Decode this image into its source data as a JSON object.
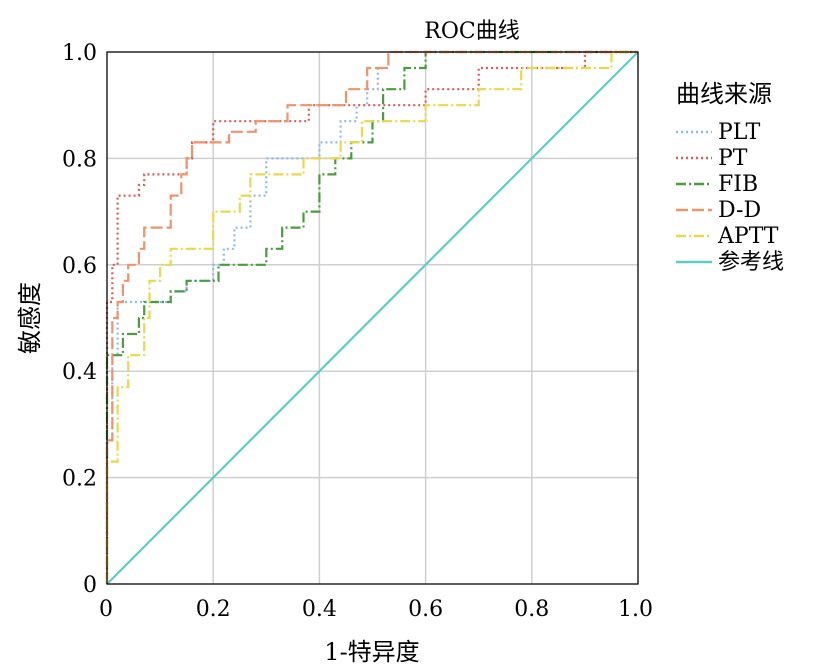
{
  "chart_data": {
    "type": "line",
    "title": "ROC曲线",
    "xlabel": "1-特异度",
    "ylabel": "敏感度",
    "xlim": [
      0,
      1
    ],
    "ylim": [
      0,
      1
    ],
    "x_ticks": [
      "0",
      "0.2",
      "0.4",
      "0.6",
      "0.8",
      "1.0"
    ],
    "y_ticks": [
      "0",
      "0.2",
      "0.4",
      "0.6",
      "0.8",
      "1.0"
    ],
    "grid": true,
    "legend": {
      "title": "曲线来源",
      "position": "right"
    },
    "series": [
      {
        "name": "PLT",
        "color": "#8fb9e8",
        "dash": "dotted",
        "points": [
          [
            0,
            0
          ],
          [
            0,
            0.27
          ],
          [
            0.01,
            0.27
          ],
          [
            0.01,
            0.43
          ],
          [
            0.02,
            0.43
          ],
          [
            0.02,
            0.53
          ],
          [
            0.12,
            0.53
          ],
          [
            0.12,
            0.55
          ],
          [
            0.15,
            0.55
          ],
          [
            0.15,
            0.57
          ],
          [
            0.2,
            0.57
          ],
          [
            0.2,
            0.6
          ],
          [
            0.22,
            0.6
          ],
          [
            0.22,
            0.63
          ],
          [
            0.24,
            0.63
          ],
          [
            0.24,
            0.67
          ],
          [
            0.27,
            0.67
          ],
          [
            0.27,
            0.73
          ],
          [
            0.3,
            0.73
          ],
          [
            0.3,
            0.8
          ],
          [
            0.4,
            0.8
          ],
          [
            0.4,
            0.83
          ],
          [
            0.44,
            0.83
          ],
          [
            0.44,
            0.87
          ],
          [
            0.47,
            0.87
          ],
          [
            0.47,
            0.9
          ],
          [
            0.49,
            0.9
          ],
          [
            0.49,
            0.93
          ],
          [
            0.51,
            0.93
          ],
          [
            0.51,
            0.97
          ],
          [
            0.53,
            0.97
          ],
          [
            0.53,
            1.0
          ],
          [
            1.0,
            1.0
          ]
        ]
      },
      {
        "name": "PT",
        "color": "#e05a5a",
        "dash": "dotted",
        "points": [
          [
            0,
            0
          ],
          [
            0,
            0.53
          ],
          [
            0.01,
            0.53
          ],
          [
            0.01,
            0.6
          ],
          [
            0.02,
            0.6
          ],
          [
            0.02,
            0.73
          ],
          [
            0.06,
            0.73
          ],
          [
            0.06,
            0.75
          ],
          [
            0.07,
            0.75
          ],
          [
            0.07,
            0.77
          ],
          [
            0.15,
            0.77
          ],
          [
            0.15,
            0.8
          ],
          [
            0.16,
            0.8
          ],
          [
            0.16,
            0.83
          ],
          [
            0.2,
            0.83
          ],
          [
            0.2,
            0.87
          ],
          [
            0.38,
            0.87
          ],
          [
            0.38,
            0.9
          ],
          [
            0.6,
            0.9
          ],
          [
            0.6,
            0.93
          ],
          [
            0.7,
            0.93
          ],
          [
            0.7,
            0.97
          ],
          [
            0.9,
            0.97
          ],
          [
            0.9,
            1.0
          ],
          [
            1.0,
            1.0
          ]
        ]
      },
      {
        "name": "FIB",
        "color": "#4a9c3e",
        "dash": "dashdot",
        "points": [
          [
            0,
            0
          ],
          [
            0,
            0.43
          ],
          [
            0.03,
            0.43
          ],
          [
            0.03,
            0.47
          ],
          [
            0.06,
            0.47
          ],
          [
            0.06,
            0.5
          ],
          [
            0.07,
            0.5
          ],
          [
            0.07,
            0.53
          ],
          [
            0.12,
            0.53
          ],
          [
            0.12,
            0.55
          ],
          [
            0.15,
            0.55
          ],
          [
            0.15,
            0.57
          ],
          [
            0.21,
            0.57
          ],
          [
            0.21,
            0.6
          ],
          [
            0.3,
            0.6
          ],
          [
            0.3,
            0.63
          ],
          [
            0.33,
            0.63
          ],
          [
            0.33,
            0.67
          ],
          [
            0.37,
            0.67
          ],
          [
            0.37,
            0.7
          ],
          [
            0.4,
            0.7
          ],
          [
            0.4,
            0.77
          ],
          [
            0.43,
            0.77
          ],
          [
            0.43,
            0.8
          ],
          [
            0.46,
            0.8
          ],
          [
            0.46,
            0.83
          ],
          [
            0.5,
            0.83
          ],
          [
            0.5,
            0.87
          ],
          [
            0.52,
            0.87
          ],
          [
            0.52,
            0.93
          ],
          [
            0.56,
            0.93
          ],
          [
            0.56,
            0.97
          ],
          [
            0.6,
            0.97
          ],
          [
            0.6,
            1.0
          ],
          [
            1.0,
            1.0
          ]
        ]
      },
      {
        "name": "D-D",
        "color": "#f0926a",
        "dash": "longdash",
        "points": [
          [
            0,
            0
          ],
          [
            0,
            0.27
          ],
          [
            0.01,
            0.27
          ],
          [
            0.01,
            0.5
          ],
          [
            0.02,
            0.5
          ],
          [
            0.02,
            0.53
          ],
          [
            0.03,
            0.53
          ],
          [
            0.03,
            0.57
          ],
          [
            0.04,
            0.57
          ],
          [
            0.04,
            0.6
          ],
          [
            0.06,
            0.6
          ],
          [
            0.06,
            0.63
          ],
          [
            0.07,
            0.63
          ],
          [
            0.07,
            0.67
          ],
          [
            0.12,
            0.67
          ],
          [
            0.12,
            0.73
          ],
          [
            0.14,
            0.73
          ],
          [
            0.14,
            0.77
          ],
          [
            0.15,
            0.77
          ],
          [
            0.15,
            0.8
          ],
          [
            0.16,
            0.8
          ],
          [
            0.16,
            0.83
          ],
          [
            0.23,
            0.83
          ],
          [
            0.23,
            0.85
          ],
          [
            0.28,
            0.85
          ],
          [
            0.28,
            0.87
          ],
          [
            0.34,
            0.87
          ],
          [
            0.34,
            0.9
          ],
          [
            0.45,
            0.9
          ],
          [
            0.45,
            0.93
          ],
          [
            0.49,
            0.93
          ],
          [
            0.49,
            0.97
          ],
          [
            0.53,
            0.97
          ],
          [
            0.53,
            1.0
          ],
          [
            1.0,
            1.0
          ]
        ]
      },
      {
        "name": "APTT",
        "color": "#e8d84a",
        "dash": "dashdot",
        "points": [
          [
            0,
            0
          ],
          [
            0,
            0.23
          ],
          [
            0.02,
            0.23
          ],
          [
            0.02,
            0.37
          ],
          [
            0.04,
            0.37
          ],
          [
            0.04,
            0.43
          ],
          [
            0.07,
            0.43
          ],
          [
            0.07,
            0.5
          ],
          [
            0.08,
            0.5
          ],
          [
            0.08,
            0.57
          ],
          [
            0.1,
            0.57
          ],
          [
            0.1,
            0.6
          ],
          [
            0.12,
            0.6
          ],
          [
            0.12,
            0.63
          ],
          [
            0.2,
            0.63
          ],
          [
            0.2,
            0.7
          ],
          [
            0.25,
            0.7
          ],
          [
            0.25,
            0.73
          ],
          [
            0.27,
            0.73
          ],
          [
            0.27,
            0.77
          ],
          [
            0.37,
            0.77
          ],
          [
            0.37,
            0.8
          ],
          [
            0.44,
            0.8
          ],
          [
            0.44,
            0.83
          ],
          [
            0.48,
            0.83
          ],
          [
            0.48,
            0.87
          ],
          [
            0.6,
            0.87
          ],
          [
            0.6,
            0.9
          ],
          [
            0.7,
            0.9
          ],
          [
            0.7,
            0.93
          ],
          [
            0.78,
            0.93
          ],
          [
            0.78,
            0.97
          ],
          [
            0.95,
            0.97
          ],
          [
            0.95,
            1.0
          ],
          [
            1.0,
            1.0
          ]
        ]
      },
      {
        "name": "参考线",
        "color": "#5ecdc6",
        "dash": "solid",
        "points": [
          [
            0,
            0
          ],
          [
            1,
            1
          ]
        ]
      }
    ]
  }
}
